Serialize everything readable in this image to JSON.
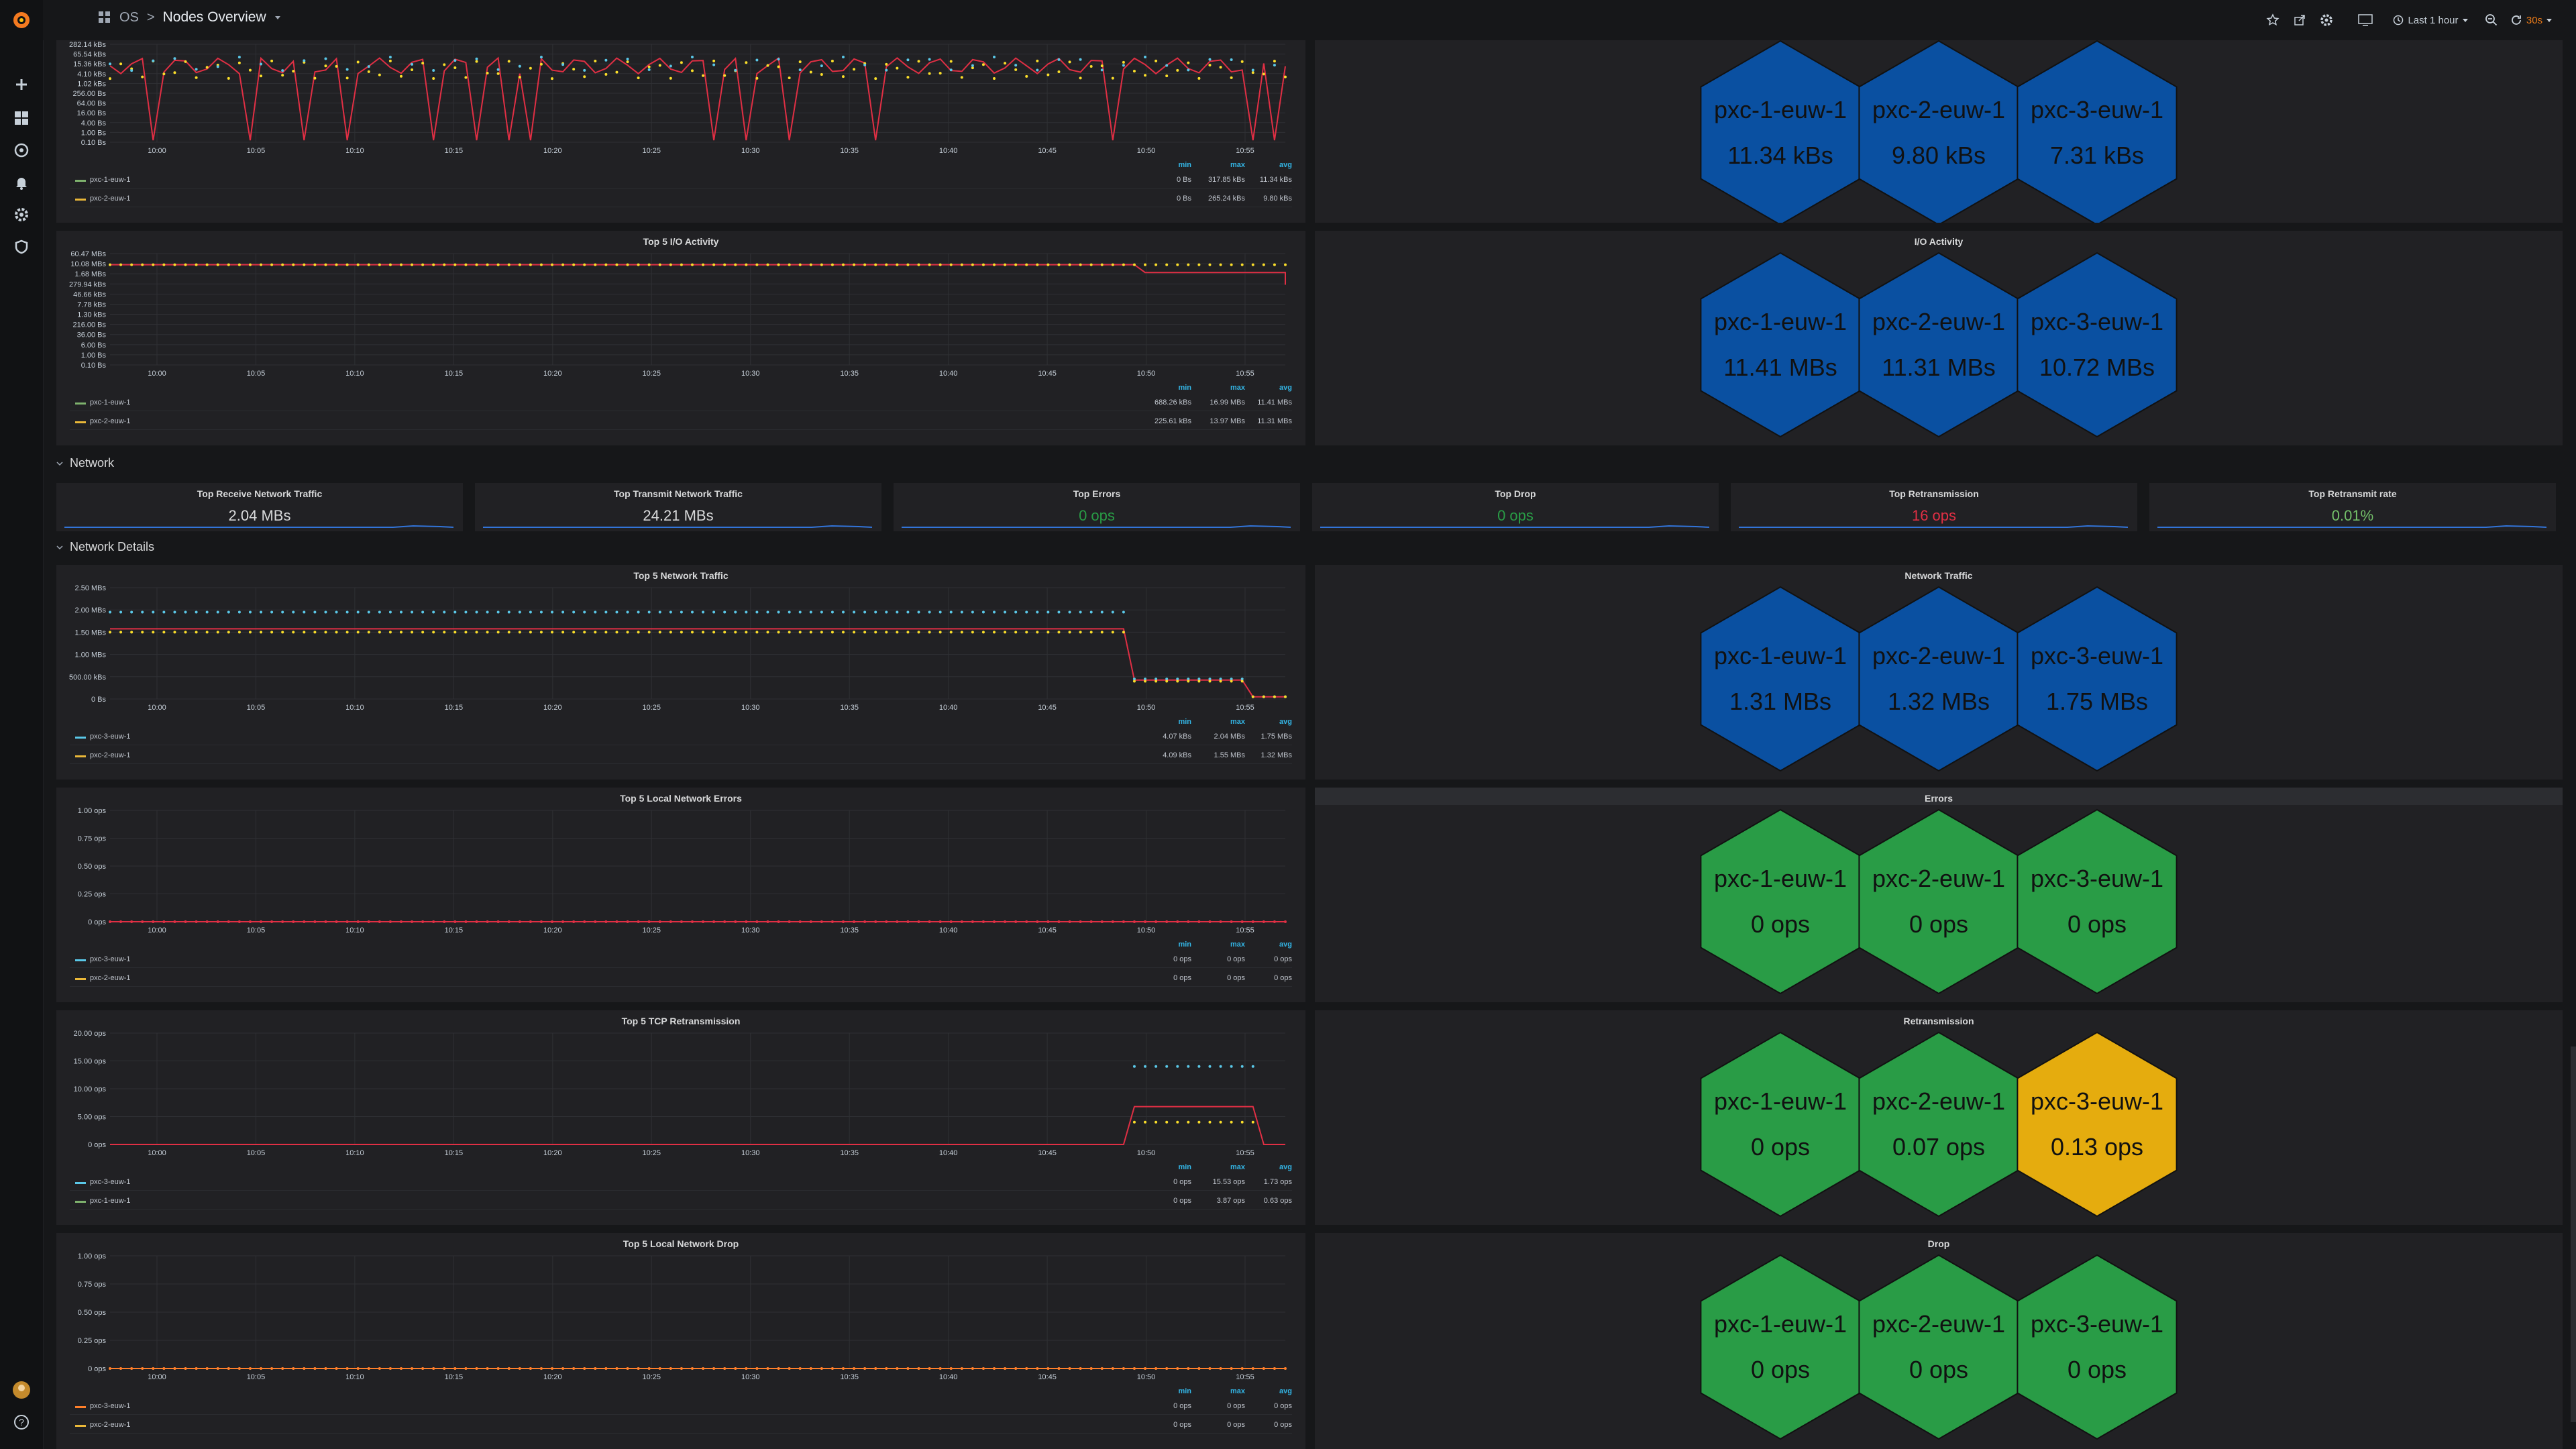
{
  "nav": {
    "breadcrumb_folder": "OS",
    "breadcrumb_sep": ">",
    "dashboard_title": "Nodes Overview",
    "time_range": "Last 1 hour",
    "refresh_interval": "30s"
  },
  "rows": {
    "network": "Network",
    "network_details": "Network Details"
  },
  "colors": {
    "blue": "#0a50a1",
    "green": "#299c46",
    "orange": "#e5ac0e",
    "red_line": "#e02f44",
    "yellow_line": "#fade2a",
    "cyan_line": "#5ac8e8",
    "orange_line": "#ff7f2a"
  },
  "legend_headers": {
    "min": "min",
    "max": "max",
    "avg": "avg"
  },
  "stats": [
    {
      "title": "Top Receive Network Traffic",
      "value": "2.04 MBs",
      "color": "#d8d9da"
    },
    {
      "title": "Top Transmit Network Traffic",
      "value": "24.21 MBs",
      "color": "#d8d9da"
    },
    {
      "title": "Top Errors",
      "value": "0 ops",
      "color": "#299c46"
    },
    {
      "title": "Top Drop",
      "value": "0 ops",
      "color": "#299c46"
    },
    {
      "title": "Top Retransmission",
      "value": "16 ops",
      "color": "#e02f44"
    },
    {
      "title": "Top Retransmit rate",
      "value": "0.01%",
      "color": "#73bf69"
    }
  ],
  "hex_panels": [
    {
      "title": "",
      "hexes": [
        {
          "name": "pxc-1-euw-1",
          "value": "11.34 kBs",
          "color": "blue"
        },
        {
          "name": "pxc-2-euw-1",
          "value": "9.80 kBs",
          "color": "blue"
        },
        {
          "name": "pxc-3-euw-1",
          "value": "7.31 kBs",
          "color": "blue"
        }
      ]
    },
    {
      "title": "I/O Activity",
      "hexes": [
        {
          "name": "pxc-1-euw-1",
          "value": "11.41 MBs",
          "color": "blue"
        },
        {
          "name": "pxc-2-euw-1",
          "value": "11.31 MBs",
          "color": "blue"
        },
        {
          "name": "pxc-3-euw-1",
          "value": "10.72 MBs",
          "color": "blue"
        }
      ]
    },
    {
      "title": "Network Traffic",
      "hexes": [
        {
          "name": "pxc-1-euw-1",
          "value": "1.31 MBs",
          "color": "blue"
        },
        {
          "name": "pxc-2-euw-1",
          "value": "1.32 MBs",
          "color": "blue"
        },
        {
          "name": "pxc-3-euw-1",
          "value": "1.75 MBs",
          "color": "blue"
        }
      ]
    },
    {
      "title": "Errors",
      "hexes": [
        {
          "name": "pxc-1-euw-1",
          "value": "0 ops",
          "color": "green"
        },
        {
          "name": "pxc-2-euw-1",
          "value": "0 ops",
          "color": "green"
        },
        {
          "name": "pxc-3-euw-1",
          "value": "0 ops",
          "color": "green"
        }
      ]
    },
    {
      "title": "Retransmission",
      "hexes": [
        {
          "name": "pxc-1-euw-1",
          "value": "0 ops",
          "color": "green"
        },
        {
          "name": "pxc-2-euw-1",
          "value": "0.07 ops",
          "color": "green"
        },
        {
          "name": "pxc-3-euw-1",
          "value": "0.13 ops",
          "color": "orange"
        }
      ]
    },
    {
      "title": "Drop",
      "hexes": [
        {
          "name": "pxc-1-euw-1",
          "value": "0 ops",
          "color": "green"
        },
        {
          "name": "pxc-2-euw-1",
          "value": "0 ops",
          "color": "green"
        },
        {
          "name": "pxc-3-euw-1",
          "value": "0 ops",
          "color": "green"
        }
      ]
    }
  ],
  "chart_data": [
    {
      "type": "line",
      "title": "",
      "yticks": [
        "282.14 kBs",
        "65.54 kBs",
        "15.36 kBs",
        "4.10 kBs",
        "1.02 kBs",
        "256.00 Bs",
        "64.00 Bs",
        "16.00 Bs",
        "4.00 Bs",
        "1.00 Bs",
        "0.10 Bs"
      ],
      "xticks": [
        "10:00",
        "10:05",
        "10:10",
        "10:15",
        "10:20",
        "10:25",
        "10:30",
        "10:35",
        "10:40",
        "10:45",
        "10:50",
        "10:55"
      ],
      "legend": [
        {
          "name": "pxc-1-euw-1",
          "color": "#7eb26d",
          "min": "0 Bs",
          "max": "317.85 kBs",
          "avg": "11.34 kBs"
        },
        {
          "name": "pxc-2-euw-1",
          "color": "#eab839",
          "min": "0 Bs",
          "max": "265.24 kBs",
          "avg": "9.80 kBs"
        }
      ]
    },
    {
      "type": "line",
      "title": "Top 5 I/O Activity",
      "yticks": [
        "60.47 MBs",
        "10.08 MBs",
        "1.68 MBs",
        "279.94 kBs",
        "46.66 kBs",
        "7.78 kBs",
        "1.30 kBs",
        "216.00 Bs",
        "36.00 Bs",
        "6.00 Bs",
        "1.00 Bs",
        "0.10 Bs"
      ],
      "xticks": [
        "10:00",
        "10:05",
        "10:10",
        "10:15",
        "10:20",
        "10:25",
        "10:30",
        "10:35",
        "10:40",
        "10:45",
        "10:50",
        "10:55"
      ],
      "legend": [
        {
          "name": "pxc-1-euw-1",
          "color": "#7eb26d",
          "min": "688.26 kBs",
          "max": "16.99 MBs",
          "avg": "11.41 MBs"
        },
        {
          "name": "pxc-2-euw-1",
          "color": "#eab839",
          "min": "225.61 kBs",
          "max": "13.97 MBs",
          "avg": "11.31 MBs"
        }
      ]
    },
    {
      "type": "line",
      "title": "Top 5 Network Traffic",
      "yticks": [
        "2.50 MBs",
        "2.00 MBs",
        "1.50 MBs",
        "1.00 MBs",
        "500.00 kBs",
        "0 Bs"
      ],
      "xticks": [
        "10:00",
        "10:05",
        "10:10",
        "10:15",
        "10:20",
        "10:25",
        "10:30",
        "10:35",
        "10:40",
        "10:45",
        "10:50",
        "10:55"
      ],
      "series": [
        {
          "name": "pxc-3-euw-1",
          "values_mbs": [
            1.95,
            1.97,
            1.98,
            1.98,
            1.99,
            1.98,
            1.99,
            2.0,
            2.0,
            2.0,
            0.45,
            0.4,
            0.05
          ]
        },
        {
          "name": "pxc-2-euw-1",
          "values_mbs": [
            1.55,
            1.56,
            1.56,
            1.57,
            1.57,
            1.57,
            1.58,
            1.58,
            1.58,
            1.58,
            0.38,
            0.36,
            0.04
          ]
        }
      ],
      "legend": [
        {
          "name": "pxc-3-euw-1",
          "color": "#5ac8e8",
          "min": "4.07 kBs",
          "max": "2.04 MBs",
          "avg": "1.75 MBs"
        },
        {
          "name": "pxc-2-euw-1",
          "color": "#eab839",
          "min": "4.09 kBs",
          "max": "1.55 MBs",
          "avg": "1.32 MBs"
        }
      ]
    },
    {
      "type": "line",
      "title": "Top 5 Local Network Errors",
      "yticks": [
        "1.00 ops",
        "0.75 ops",
        "0.50 ops",
        "0.25 ops",
        "0 ops"
      ],
      "xticks": [
        "10:00",
        "10:05",
        "10:10",
        "10:15",
        "10:20",
        "10:25",
        "10:30",
        "10:35",
        "10:40",
        "10:45",
        "10:50",
        "10:55"
      ],
      "legend": [
        {
          "name": "pxc-3-euw-1",
          "color": "#5ac8e8",
          "min": "0 ops",
          "max": "0 ops",
          "avg": "0 ops"
        },
        {
          "name": "pxc-2-euw-1",
          "color": "#eab839",
          "min": "0 ops",
          "max": "0 ops",
          "avg": "0 ops"
        }
      ]
    },
    {
      "type": "line",
      "title": "Top 5 TCP Retransmission",
      "yticks": [
        "20.00 ops",
        "15.00 ops",
        "10.00 ops",
        "5.00 ops",
        "0 ops"
      ],
      "xticks": [
        "10:00",
        "10:05",
        "10:10",
        "10:15",
        "10:20",
        "10:25",
        "10:30",
        "10:35",
        "10:40",
        "10:45",
        "10:50",
        "10:55"
      ],
      "legend": [
        {
          "name": "pxc-3-euw-1",
          "color": "#5ac8e8",
          "min": "0 ops",
          "max": "15.53 ops",
          "avg": "1.73 ops"
        },
        {
          "name": "pxc-1-euw-1",
          "color": "#7eb26d",
          "min": "0 ops",
          "max": "3.87 ops",
          "avg": "0.63 ops"
        }
      ]
    },
    {
      "type": "line",
      "title": "Top 5 Local Network Drop",
      "yticks": [
        "1.00 ops",
        "0.75 ops",
        "0.50 ops",
        "0.25 ops",
        "0 ops"
      ],
      "xticks": [
        "10:00",
        "10:05",
        "10:10",
        "10:15",
        "10:20",
        "10:25",
        "10:30",
        "10:35",
        "10:40",
        "10:45",
        "10:50",
        "10:55"
      ],
      "legend": [
        {
          "name": "pxc-3-euw-1",
          "color": "#ff7f2a",
          "min": "0 ops",
          "max": "0 ops",
          "avg": "0 ops"
        },
        {
          "name": "pxc-2-euw-1",
          "color": "#eab839",
          "min": "0 ops",
          "max": "0 ops",
          "avg": "0 ops"
        }
      ]
    }
  ]
}
